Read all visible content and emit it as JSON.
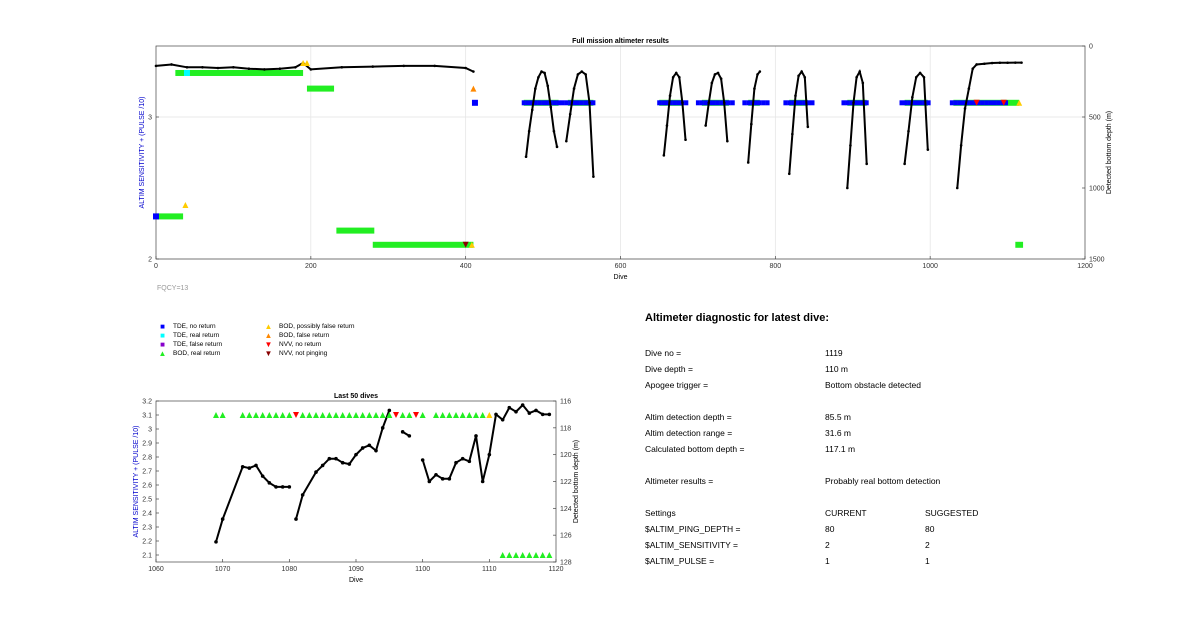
{
  "colors": {
    "tde_no_return": "#0000ff",
    "tde_real_return": "#00ffff",
    "tde_false_return": "#8800cc",
    "bod_real_return": "#22ee22",
    "bod_possibly_false": "#ffcc00",
    "bod_false_return": "#ff8800",
    "nvv_no_return": "#ff0000",
    "nvv_not_pinging": "#880000",
    "left_axis_label": "#0000cc",
    "fqcy": "#999999"
  },
  "legend": {
    "items": [
      {
        "label": "TDE, no return",
        "symbol": "square",
        "color": "#0000ff"
      },
      {
        "label": "TDE, real return",
        "symbol": "square",
        "color": "#00ffff"
      },
      {
        "label": "TDE, false return",
        "symbol": "square",
        "color": "#8800cc"
      },
      {
        "label": "BOD, real return",
        "symbol": "triangle-up",
        "color": "#22ee22"
      },
      {
        "label": "BOD, possibly false return",
        "symbol": "triangle-up",
        "color": "#ffcc00"
      },
      {
        "label": "BOD, false return",
        "symbol": "triangle-up",
        "color": "#ff8800"
      },
      {
        "label": "NVV, no return",
        "symbol": "triangle-down",
        "color": "#ff0000"
      },
      {
        "label": "NVV, not pinging",
        "symbol": "triangle-down",
        "color": "#880000"
      }
    ]
  },
  "chart_data": [
    {
      "type": "scatter",
      "title": "Full mission altimeter results",
      "xlabel": "Dive",
      "ylabel": "ALTIM SENSITIVITY + (PULSE /10)",
      "y2label": "Detected bottom depth (m)",
      "fqcy": "FQCY=13",
      "xlim": [
        0,
        1200
      ],
      "ylim": [
        2,
        3.5
      ],
      "y2lim": [
        1500,
        0
      ],
      "xticks": [
        "0",
        "200",
        "400",
        "600",
        "800",
        "1000",
        "1200"
      ],
      "yticks": [
        "2",
        "3"
      ],
      "y2ticks": [
        "0",
        "500",
        "1000",
        "1500"
      ],
      "grid": true,
      "depth_series": [
        {
          "x": [
            0,
            20,
            40,
            60,
            80,
            100,
            120,
            140,
            160,
            180,
            190,
            200,
            240,
            280,
            320,
            360,
            400,
            410
          ],
          "y": [
            140,
            130,
            150,
            150,
            155,
            150,
            160,
            165,
            160,
            150,
            120,
            165,
            150,
            145,
            140,
            140,
            155,
            180
          ]
        },
        {
          "x": [
            478,
            482,
            486,
            490,
            494,
            498,
            502,
            506,
            510,
            514,
            518
          ],
          "y": [
            780,
            600,
            450,
            300,
            220,
            180,
            190,
            280,
            430,
            600,
            710
          ]
        },
        {
          "x": [
            530,
            535,
            540,
            545,
            550,
            555,
            560,
            565
          ],
          "y": [
            670,
            480,
            300,
            200,
            180,
            200,
            400,
            920
          ]
        },
        {
          "x": [
            656,
            660,
            664,
            668,
            672,
            676,
            680,
            684
          ],
          "y": [
            770,
            560,
            350,
            220,
            190,
            220,
            400,
            660
          ]
        },
        {
          "x": [
            710,
            714,
            718,
            722,
            726,
            730,
            734,
            738
          ],
          "y": [
            560,
            400,
            260,
            200,
            190,
            230,
            400,
            670
          ]
        },
        {
          "x": [
            765,
            769,
            773,
            777,
            780
          ],
          "y": [
            820,
            550,
            300,
            200,
            180
          ]
        },
        {
          "x": [
            818,
            822,
            826,
            830,
            834,
            838,
            842
          ],
          "y": [
            900,
            620,
            350,
            210,
            180,
            220,
            570
          ]
        },
        {
          "x": [
            893,
            897,
            901,
            905,
            909,
            913,
            918
          ],
          "y": [
            1000,
            700,
            400,
            220,
            180,
            260,
            830
          ]
        },
        {
          "x": [
            967,
            972,
            977,
            982,
            987,
            992,
            997
          ],
          "y": [
            830,
            600,
            360,
            220,
            190,
            220,
            730
          ]
        },
        {
          "x": [
            1035,
            1040,
            1045,
            1050,
            1055,
            1060,
            1070,
            1080,
            1090,
            1100,
            1110,
            1118
          ],
          "y": [
            1000,
            700,
            440,
            300,
            160,
            130,
            125,
            120,
            118,
            118,
            117,
            117
          ]
        }
      ],
      "bod_real_bands": [
        {
          "x0": 25,
          "x1": 190,
          "y": 3.31
        },
        {
          "x0": 195,
          "x1": 230,
          "y": 3.2
        },
        {
          "x0": 475,
          "x1": 520,
          "y": 3.1
        },
        {
          "x0": 532,
          "x1": 565,
          "y": 3.1
        },
        {
          "x0": 650,
          "x1": 680,
          "y": 3.1
        },
        {
          "x0": 705,
          "x1": 740,
          "y": 3.1
        },
        {
          "x0": 765,
          "x1": 780,
          "y": 3.1
        },
        {
          "x0": 818,
          "x1": 842,
          "y": 3.1
        },
        {
          "x0": 893,
          "x1": 918,
          "y": 3.1
        },
        {
          "x0": 967,
          "x1": 997,
          "y": 3.1
        },
        {
          "x0": 1030,
          "x1": 1115,
          "y": 3.1
        },
        {
          "x0": 0,
          "x1": 35,
          "y": 2.3
        },
        {
          "x0": 233,
          "x1": 282,
          "y": 2.2
        },
        {
          "x0": 280,
          "x1": 410,
          "y": 2.1
        },
        {
          "x0": 1110,
          "x1": 1120,
          "y": 2.1
        }
      ],
      "tde_no_return_bands": [
        {
          "x0": 475,
          "x1": 565,
          "y": 3.1
        },
        {
          "x0": 650,
          "x1": 685,
          "y": 3.1
        },
        {
          "x0": 700,
          "x1": 745,
          "y": 3.1
        },
        {
          "x0": 760,
          "x1": 790,
          "y": 3.1
        },
        {
          "x0": 813,
          "x1": 848,
          "y": 3.1
        },
        {
          "x0": 888,
          "x1": 920,
          "y": 3.1
        },
        {
          "x0": 963,
          "x1": 1000,
          "y": 3.1
        },
        {
          "x0": 1028,
          "x1": 1100,
          "y": 3.1
        }
      ],
      "singles": [
        {
          "x": 412,
          "y": 3.1,
          "kind": "tde_no_return"
        },
        {
          "x": 40,
          "y": 3.31,
          "kind": "tde_real_return"
        },
        {
          "x": 0,
          "y": 2.3,
          "kind": "tde_no_return"
        },
        {
          "x": 190,
          "y": 3.38,
          "kind": "bod_possibly_false"
        },
        {
          "x": 195,
          "y": 3.38,
          "kind": "bod_possibly_false"
        },
        {
          "x": 38,
          "y": 2.38,
          "kind": "bod_possibly_false"
        },
        {
          "x": 410,
          "y": 3.2,
          "kind": "bod_false_return"
        },
        {
          "x": 408,
          "y": 2.1,
          "kind": "bod_possibly_false"
        },
        {
          "x": 400,
          "y": 2.1,
          "kind": "nvv_not_pinging"
        },
        {
          "x": 1115,
          "y": 3.1,
          "kind": "bod_possibly_false"
        },
        {
          "x": 1060,
          "y": 3.1,
          "kind": "nvv_no_return"
        },
        {
          "x": 1095,
          "y": 3.1,
          "kind": "nvv_no_return"
        }
      ]
    },
    {
      "type": "scatter",
      "title": "Last 50 dives",
      "xlabel": "Dive",
      "ylabel": "ALTIM SENSITIVITY + (PULSE /10)",
      "y2label": "Detected bottom depth (m)",
      "fqcy": "FQCY=13",
      "xlim": [
        1060,
        1120
      ],
      "ylim": [
        2.05,
        3.2
      ],
      "y2lim": [
        128,
        116
      ],
      "xticks": [
        "1060",
        "1070",
        "1080",
        "1090",
        "1100",
        "1110",
        "1120"
      ],
      "yticks": [
        "2.1",
        "2.2",
        "2.3",
        "2.4",
        "2.5",
        "2.6",
        "2.7",
        "2.8",
        "2.9",
        "3",
        "3.1",
        "3.2"
      ],
      "y2ticks": [
        "116",
        "118",
        "120",
        "122",
        "124",
        "126",
        "128"
      ],
      "grid": false,
      "depth_series": [
        {
          "x": [
            1069,
            1070,
            1073,
            1074,
            1075,
            1076,
            1077,
            1078,
            1079,
            1080
          ],
          "y": [
            126.5,
            124.8,
            120.9,
            121.0,
            120.8,
            121.6,
            122.1,
            122.4,
            122.4,
            122.4
          ]
        },
        {
          "x": [
            1081,
            1082,
            1084,
            1085,
            1086,
            1087,
            1088,
            1089,
            1090,
            1091,
            1092,
            1093,
            1094,
            1095
          ],
          "y": [
            124.8,
            123.0,
            121.3,
            120.8,
            120.3,
            120.3,
            120.6,
            120.7,
            120.0,
            119.5,
            119.3,
            119.7,
            118.0,
            116.7
          ]
        },
        {
          "x": [
            1097,
            1098
          ],
          "y": [
            118.3,
            118.6
          ]
        },
        {
          "x": [
            1100,
            1101,
            1102,
            1103,
            1104,
            1105,
            1106,
            1107,
            1108,
            1109,
            1110,
            1111,
            1112,
            1113,
            1114,
            1115,
            1116,
            1117,
            1118,
            1119
          ],
          "y": [
            120.4,
            122.0,
            121.5,
            121.8,
            121.8,
            120.6,
            120.3,
            120.5,
            118.6,
            122.0,
            120.0,
            117.0,
            117.4,
            116.5,
            116.8,
            116.3,
            116.9,
            116.7,
            117.0,
            117.0
          ]
        }
      ],
      "markers": [
        {
          "x": 1069,
          "y": 3.1,
          "kind": "bod_real_return"
        },
        {
          "x": 1070,
          "y": 3.1,
          "kind": "bod_real_return"
        },
        {
          "x": 1073,
          "y": 3.1,
          "kind": "bod_real_return"
        },
        {
          "x": 1074,
          "y": 3.1,
          "kind": "bod_real_return"
        },
        {
          "x": 1075,
          "y": 3.1,
          "kind": "bod_real_return"
        },
        {
          "x": 1076,
          "y": 3.1,
          "kind": "bod_real_return"
        },
        {
          "x": 1077,
          "y": 3.1,
          "kind": "bod_real_return"
        },
        {
          "x": 1078,
          "y": 3.1,
          "kind": "bod_real_return"
        },
        {
          "x": 1079,
          "y": 3.1,
          "kind": "bod_real_return"
        },
        {
          "x": 1080,
          "y": 3.1,
          "kind": "bod_real_return"
        },
        {
          "x": 1081,
          "y": 3.1,
          "kind": "nvv_no_return"
        },
        {
          "x": 1082,
          "y": 3.1,
          "kind": "bod_real_return"
        },
        {
          "x": 1083,
          "y": 3.1,
          "kind": "bod_real_return"
        },
        {
          "x": 1084,
          "y": 3.1,
          "kind": "bod_real_return"
        },
        {
          "x": 1085,
          "y": 3.1,
          "kind": "bod_real_return"
        },
        {
          "x": 1086,
          "y": 3.1,
          "kind": "bod_real_return"
        },
        {
          "x": 1087,
          "y": 3.1,
          "kind": "bod_real_return"
        },
        {
          "x": 1088,
          "y": 3.1,
          "kind": "bod_real_return"
        },
        {
          "x": 1089,
          "y": 3.1,
          "kind": "bod_real_return"
        },
        {
          "x": 1090,
          "y": 3.1,
          "kind": "bod_real_return"
        },
        {
          "x": 1091,
          "y": 3.1,
          "kind": "bod_real_return"
        },
        {
          "x": 1092,
          "y": 3.1,
          "kind": "bod_real_return"
        },
        {
          "x": 1093,
          "y": 3.1,
          "kind": "bod_real_return"
        },
        {
          "x": 1094,
          "y": 3.1,
          "kind": "bod_real_return"
        },
        {
          "x": 1095,
          "y": 3.1,
          "kind": "bod_real_return"
        },
        {
          "x": 1096,
          "y": 3.1,
          "kind": "nvv_no_return"
        },
        {
          "x": 1097,
          "y": 3.1,
          "kind": "bod_real_return"
        },
        {
          "x": 1098,
          "y": 3.1,
          "kind": "bod_real_return"
        },
        {
          "x": 1099,
          "y": 3.1,
          "kind": "nvv_no_return"
        },
        {
          "x": 1100,
          "y": 3.1,
          "kind": "bod_real_return"
        },
        {
          "x": 1102,
          "y": 3.1,
          "kind": "bod_real_return"
        },
        {
          "x": 1103,
          "y": 3.1,
          "kind": "bod_real_return"
        },
        {
          "x": 1104,
          "y": 3.1,
          "kind": "bod_real_return"
        },
        {
          "x": 1105,
          "y": 3.1,
          "kind": "bod_real_return"
        },
        {
          "x": 1106,
          "y": 3.1,
          "kind": "bod_real_return"
        },
        {
          "x": 1107,
          "y": 3.1,
          "kind": "bod_real_return"
        },
        {
          "x": 1108,
          "y": 3.1,
          "kind": "bod_real_return"
        },
        {
          "x": 1109,
          "y": 3.1,
          "kind": "bod_real_return"
        },
        {
          "x": 1110,
          "y": 3.1,
          "kind": "bod_possibly_false"
        },
        {
          "x": 1112,
          "y": 2.1,
          "kind": "bod_real_return"
        },
        {
          "x": 1113,
          "y": 2.1,
          "kind": "bod_real_return"
        },
        {
          "x": 1114,
          "y": 2.1,
          "kind": "bod_real_return"
        },
        {
          "x": 1115,
          "y": 2.1,
          "kind": "bod_real_return"
        },
        {
          "x": 1116,
          "y": 2.1,
          "kind": "bod_real_return"
        },
        {
          "x": 1117,
          "y": 2.1,
          "kind": "bod_real_return"
        },
        {
          "x": 1118,
          "y": 2.1,
          "kind": "bod_real_return"
        },
        {
          "x": 1119,
          "y": 2.1,
          "kind": "bod_real_return"
        }
      ]
    }
  ],
  "diagnostic": {
    "title": "Altimeter diagnostic for latest dive:",
    "rows": [
      {
        "label": "Dive no =",
        "value": "1119"
      },
      {
        "label": "Dive depth =",
        "value": "110 m"
      },
      {
        "label": "Apogee trigger =",
        "value": "Bottom obstacle detected"
      },
      {
        "label": "Altim detection depth =",
        "value": "85.5 m"
      },
      {
        "label": "Altim detection range =",
        "value": "31.6 m"
      },
      {
        "label": "Calculated bottom depth =",
        "value": "117.1 m"
      },
      {
        "label": "Altimeter results =",
        "value": "Probably real bottom detection"
      }
    ],
    "settings": {
      "header": {
        "label": "Settings",
        "current": "CURRENT",
        "suggested": "SUGGESTED"
      },
      "rows": [
        {
          "label": "$ALTIM_PING_DEPTH =",
          "current": "80",
          "suggested": "80"
        },
        {
          "label": "$ALTIM_SENSITIVITY =",
          "current": "2",
          "suggested": "2"
        },
        {
          "label": "$ALTIM_PULSE =",
          "current": "1",
          "suggested": "1"
        }
      ]
    }
  }
}
